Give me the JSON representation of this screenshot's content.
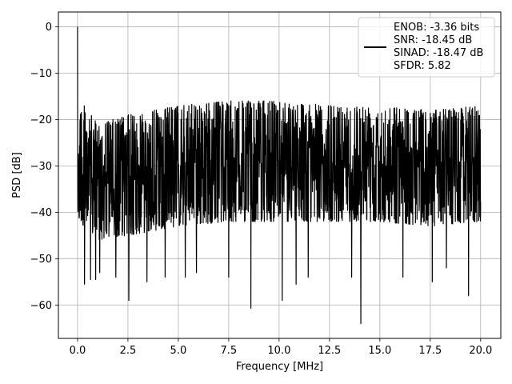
{
  "chart_data": {
    "type": "line",
    "title": "",
    "xlabel": "Frequency [MHz]",
    "ylabel": "PSD [dB]",
    "xlim": [
      -0.95,
      21.0
    ],
    "ylim": [
      -67.2,
      3.2
    ],
    "x_ticks": [
      0.0,
      2.5,
      5.0,
      7.5,
      10.0,
      12.5,
      15.0,
      17.5,
      20.0
    ],
    "x_tick_labels": [
      "0.0",
      "2.5",
      "5.0",
      "7.5",
      "10.0",
      "12.5",
      "15.0",
      "17.5",
      "20.0"
    ],
    "y_ticks": [
      0,
      -10,
      -20,
      -30,
      -40,
      -50,
      -60
    ],
    "y_tick_labels": [
      "0",
      "−10",
      "−20",
      "−30",
      "−40",
      "−50",
      "−60"
    ],
    "grid": true,
    "legend_placement": "top-right",
    "series": [
      {
        "name": "",
        "color": "#000000",
        "peak": {
          "x": 0.0,
          "y": 0.0
        },
        "x_range": [
          0.0,
          20.0
        ],
        "noise_band": [
          {
            "x": 0.0,
            "upper": -15,
            "lower": -42
          },
          {
            "x": 1.0,
            "upper": -21,
            "lower": -46
          },
          {
            "x": 2.5,
            "upper": -19,
            "lower": -45
          },
          {
            "x": 5.0,
            "upper": -17,
            "lower": -43
          },
          {
            "x": 7.5,
            "upper": -16,
            "lower": -42
          },
          {
            "x": 10.0,
            "upper": -16,
            "lower": -42
          },
          {
            "x": 12.5,
            "upper": -17,
            "lower": -42
          },
          {
            "x": 15.0,
            "upper": -17,
            "lower": -42
          },
          {
            "x": 17.5,
            "upper": -18,
            "lower": -43
          },
          {
            "x": 20.0,
            "upper": -17,
            "lower": -42
          }
        ],
        "notable_dips": [
          {
            "x": 0.35,
            "y": -55.5
          },
          {
            "x": 0.65,
            "y": -54.5
          },
          {
            "x": 0.9,
            "y": -54.5
          },
          {
            "x": 1.1,
            "y": -53.0
          },
          {
            "x": 1.9,
            "y": -54.0
          },
          {
            "x": 2.55,
            "y": -59.0
          },
          {
            "x": 3.45,
            "y": -55.0
          },
          {
            "x": 4.35,
            "y": -54.0
          },
          {
            "x": 5.35,
            "y": -54.0
          },
          {
            "x": 5.9,
            "y": -53.0
          },
          {
            "x": 7.5,
            "y": -54.0
          },
          {
            "x": 8.6,
            "y": -60.7
          },
          {
            "x": 10.15,
            "y": -59.0
          },
          {
            "x": 10.85,
            "y": -55.5
          },
          {
            "x": 11.45,
            "y": -54.0
          },
          {
            "x": 13.6,
            "y": -54.0
          },
          {
            "x": 14.05,
            "y": -64.0
          },
          {
            "x": 16.15,
            "y": -54.0
          },
          {
            "x": 17.6,
            "y": -55.0
          },
          {
            "x": 18.3,
            "y": -52.0
          },
          {
            "x": 19.4,
            "y": -58.0
          }
        ]
      }
    ],
    "legend": {
      "lines": [
        "ENOB: -3.36 bits",
        "SNR: -18.45 dB",
        "SINAD: -18.47 dB",
        "SFDR: 5.82"
      ]
    }
  }
}
